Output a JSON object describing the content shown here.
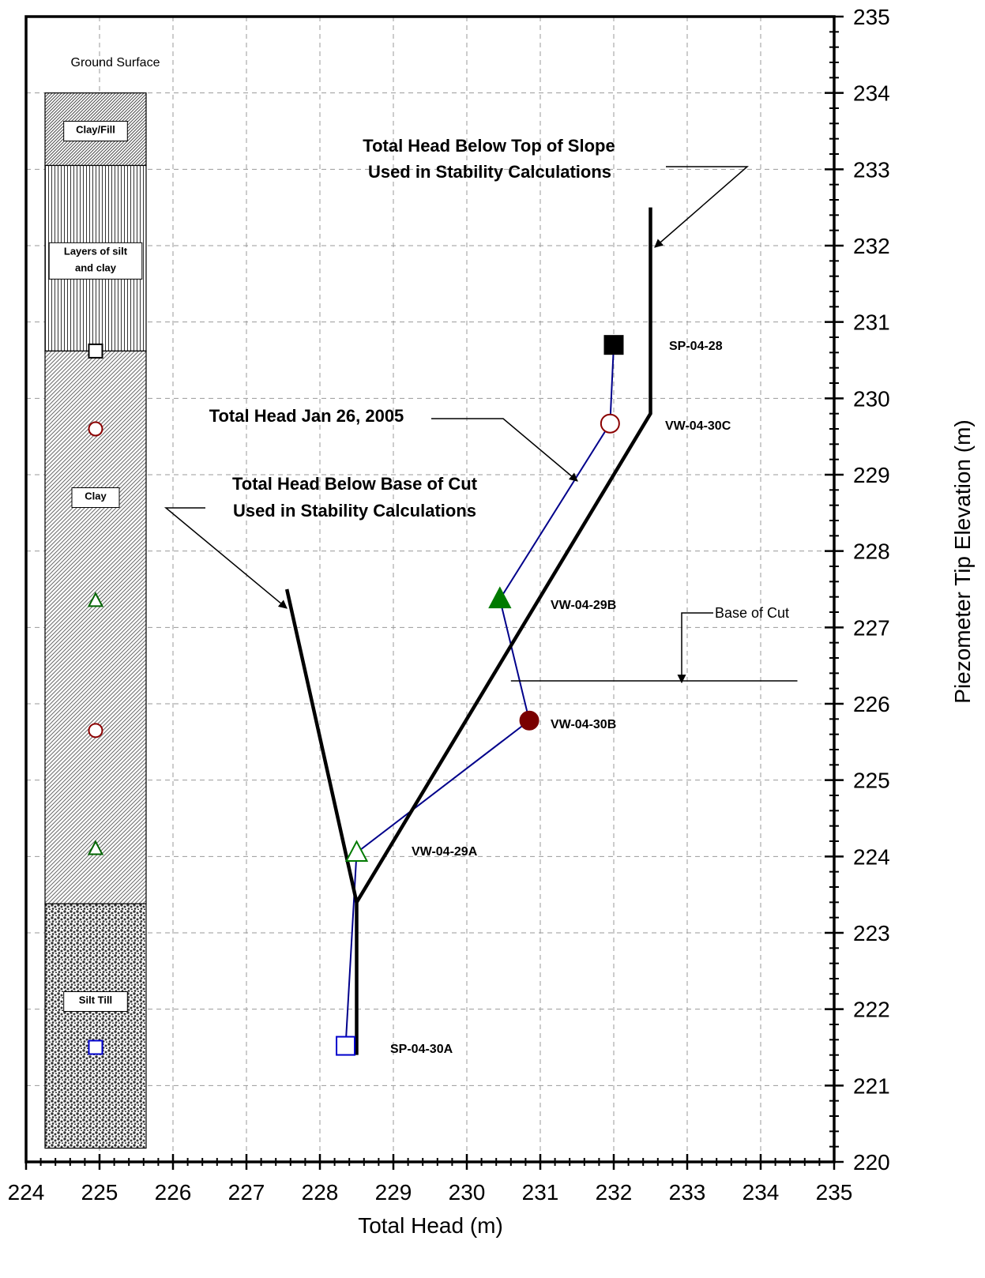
{
  "chart_data": {
    "type": "scatter",
    "xlabel": "Total Head (m)",
    "ylabel": "Piezometer Tip Elevation (m)",
    "xlim": [
      224,
      235
    ],
    "ylim": [
      220,
      235
    ],
    "x_ticks": [
      "224",
      "225",
      "226",
      "227",
      "228",
      "229",
      "230",
      "231",
      "232",
      "233",
      "234",
      "235"
    ],
    "y_ticks": [
      "220",
      "221",
      "222",
      "223",
      "224",
      "225",
      "226",
      "227",
      "228",
      "229",
      "230",
      "231",
      "232",
      "233",
      "234",
      "235"
    ],
    "grid": true,
    "y_axis_side": "right",
    "piezometers": [
      {
        "label": "SP-04-28",
        "x": 232.0,
        "y": 230.7,
        "marker": "square",
        "filled": true,
        "color": "#000000"
      },
      {
        "label": "VW-04-30C",
        "x": 231.95,
        "y": 229.67,
        "marker": "circle",
        "filled": false,
        "color": "#8b0000"
      },
      {
        "label": "VW-04-29B",
        "x": 230.45,
        "y": 227.37,
        "marker": "triangle",
        "filled": true,
        "color": "#007a00"
      },
      {
        "label": "VW-04-30B",
        "x": 230.85,
        "y": 225.78,
        "marker": "circle",
        "filled": true,
        "color": "#7a0000"
      },
      {
        "label": "VW-04-29A",
        "x": 228.5,
        "y": 224.05,
        "marker": "triangle",
        "filled": false,
        "color": "#007a00"
      },
      {
        "label": "SP-04-30A",
        "x": 228.35,
        "y": 221.52,
        "marker": "square",
        "filled": false,
        "color": "#0000cc"
      }
    ],
    "series": [
      {
        "name": "Total Head Jan 26, 2005",
        "color": "#00008b",
        "points": [
          [
            232.0,
            230.7
          ],
          [
            231.95,
            229.67
          ],
          [
            230.45,
            227.37
          ],
          [
            230.85,
            225.78
          ],
          [
            228.5,
            224.05
          ],
          [
            228.35,
            221.52
          ]
        ]
      },
      {
        "name": "Total Head Below Top of Slope Used in Stability Calculations",
        "color": "#000000",
        "points": [
          [
            232.5,
            232.5
          ],
          [
            232.5,
            229.8
          ],
          [
            228.5,
            223.4
          ],
          [
            228.5,
            221.4
          ]
        ]
      },
      {
        "name": "Total Head Below Base of Cut Used in Stability Calculations",
        "color": "#000000",
        "points": [
          [
            227.55,
            227.5
          ],
          [
            228.5,
            223.4
          ]
        ]
      }
    ],
    "base_of_cut": {
      "label": "Base of Cut",
      "elevation": 226.3,
      "x_from": 230.6,
      "x_to": 234.5
    },
    "annotations": {
      "top_of_slope_line1": "Total Head Below Top of Slope",
      "top_of_slope_line2": "Used in Stability Calculations",
      "jan26": "Total Head Jan 26, 2005",
      "base_cut_line1": "Total Head Below Base of Cut",
      "base_cut_line2": "Used in Stability Calculations"
    },
    "borehole_log": {
      "ground_surface": "Ground Surface",
      "layers": [
        {
          "name": "Clay/Fill",
          "lines": [
            "Clay/Fill"
          ],
          "top": 234.0,
          "bottom": 233.05,
          "pattern": "diagonal-dense"
        },
        {
          "name": "Layers of silt and clay",
          "lines": [
            "Layers of silt",
            "and clay"
          ],
          "top": 233.05,
          "bottom": 230.62,
          "pattern": "vertical"
        },
        {
          "name": "Clay",
          "lines": [
            "Clay"
          ],
          "top": 230.62,
          "bottom": 223.38,
          "pattern": "diagonal"
        },
        {
          "name": "Silt Till",
          "lines": [
            "Silt Till"
          ],
          "top": 223.38,
          "bottom": 220.18,
          "pattern": "dots"
        }
      ],
      "tip_markers": [
        {
          "y": 230.62,
          "marker": "square",
          "color": "#000000"
        },
        {
          "y": 229.6,
          "marker": "circle",
          "color": "#8b0000"
        },
        {
          "y": 227.35,
          "marker": "triangle",
          "color": "#006400"
        },
        {
          "y": 225.65,
          "marker": "circle",
          "color": "#8b0000"
        },
        {
          "y": 224.1,
          "marker": "triangle",
          "color": "#006400"
        },
        {
          "y": 221.5,
          "marker": "square",
          "color": "#0000cc"
        }
      ]
    }
  }
}
